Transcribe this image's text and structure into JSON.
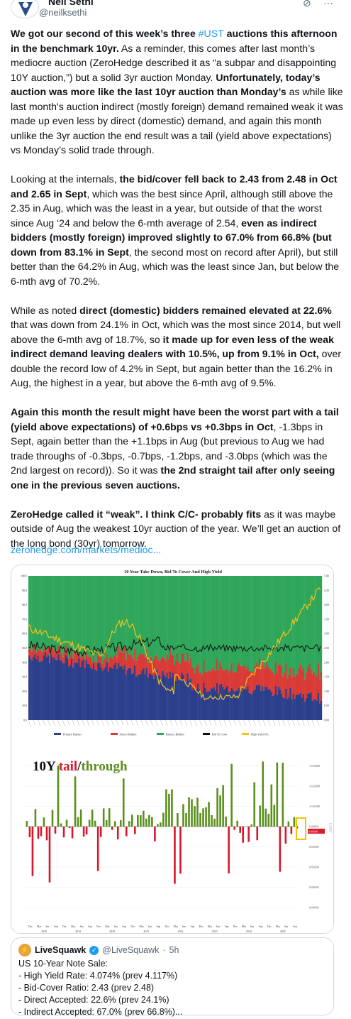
{
  "author": {
    "name": "Neil Sethi",
    "handle": "@neilksethi"
  },
  "header_icons": [
    "grok-icon",
    "more-icon"
  ],
  "tweet": {
    "p1": [
      {
        "t": "We got our second of this week’s three ",
        "b": true
      },
      {
        "t": "#UST",
        "link": true
      },
      {
        "t": " auctions this afternoon in the benchmark 10yr.",
        "b": true
      },
      {
        "t": " As a reminder, this comes after last month’s mediocre auction (ZeroHedge described it as “a subpar and disappointing 10Y auction,”) but a solid 3yr auction Monday. "
      },
      {
        "t": "Unfortunately, today’s auction was more like the last 10yr auction than Monday’s",
        "b": true
      },
      {
        "t": " as while like last month's auction indirect (mostly foreign) demand remained weak it was made up even less by direct (domestic) demand, and again this month unlike the 3yr auction the end result was a tail (yield above expectations) vs Monday’s solid trade through."
      }
    ],
    "p2": [
      {
        "t": "Looking at the internals, "
      },
      {
        "t": "the bid/cover fell back to 2.43 from 2.48 in Oct and 2.65 in Sept",
        "b": true
      },
      {
        "t": ", which was the best since April, although still above the 2.35 in Aug, which was the least in a year, but outside of that the worst since Aug ‘24 and below the 6-mth average of 2.54, "
      },
      {
        "t": "even as indirect bidders (mostly foreign) improved slightly to 67.0% from 66.8% (but down from 83.1% in Sept",
        "b": true
      },
      {
        "t": ", the second most on record after April), but still better than the 64.2% in Aug, which was the least since Jan, but below the 6-mth avg of 70.2%."
      }
    ],
    "p3": [
      {
        "t": "While as noted "
      },
      {
        "t": "direct (domestic) bidders remained elevated at 22.6%",
        "b": true
      },
      {
        "t": " that was down from 24.1% in Oct, which was the most since 2014, but well above the 6-mth avg of 18.7%, so "
      },
      {
        "t": "it made up for even less of the weak indirect demand leaving dealers with 10.5%, up from 9.1% in Oct,",
        "b": true
      },
      {
        "t": " over double the record low of 4.2% in Sept, but again better than the 16.2% in Aug, the highest in a year, but above the 6-mth avg of 9.5%."
      }
    ],
    "p4": [
      {
        "t": "Again this month the result might have been the worst part with a tail (yield above expectations) of +0.6bps vs +0.3bps in Oct",
        "b": true
      },
      {
        "t": ", -1.3bps in Sept, again better than the +1.1bps in Aug (but previous to Aug we had trade throughs of -0.3bps, -0.7bps, -1.2bps, and -3.0bps (which was the 2nd largest on record)). So it was "
      },
      {
        "t": "the 2nd straight tail after only seeing one in the previous seven auctions.",
        "b": true
      }
    ],
    "p5": [
      {
        "t": "ZeroHedge called it “weak”. I think C/C- probably fits",
        "b": true
      },
      {
        "t": " as it was maybe outside of Aug the weakest 10yr auction of the year. We’ll get an auction of the long bond (30yr) tomorrow."
      }
    ],
    "url": "zerohedge.com/markets/medioc..."
  },
  "chart1": {
    "title": "10 Year Take Down, Bid To Cover And High Yield",
    "y_left_ticks": [
      "100.0",
      "90.0",
      "80.0",
      "70.0",
      "60.0",
      "50.0",
      "40.0",
      "30.0",
      "20.0",
      "10.0",
      "0.0"
    ],
    "y_right_ticks": [
      "5.00",
      "4.50",
      "4.00",
      "3.50",
      "3.00",
      "2.50",
      "2.00",
      "1.50",
      "1.00",
      "0.50",
      "0.00"
    ],
    "legend": [
      "Primary Dealers",
      "Direct Bidders",
      "Indirect Bidders",
      "Bid To Cover",
      "High Yield (%)"
    ],
    "colors": {
      "dealers": "#2b3f8c",
      "direct": "#d93a36",
      "indirect": "#2fa65a",
      "btc": "#111111",
      "yield": "#f2c21b"
    }
  },
  "chart2": {
    "title_prefix": "10Y ",
    "title_tail": "tail",
    "title_sep": "/",
    "title_through": "through",
    "side_label": "LOW",
    "y_ticks": [
      "-0.03000",
      "-0.02000",
      "-0.01000",
      "0.00000",
      "0.01000",
      "0.02000",
      "0.03000",
      "0.04000"
    ],
    "highlight_value": "0.00000",
    "highlight_value2": "0.00600",
    "x_labels": [
      "Dec",
      "Mar",
      "Jun",
      "Sep",
      "Dec",
      "Mar",
      "Jun",
      "Sep",
      "Dec",
      "Mar",
      "Jun",
      "Sep",
      "Dec",
      "Mar",
      "Jun",
      "Sep",
      "Dec",
      "Mar",
      "Jun",
      "Sep",
      "Dec",
      "Mar",
      "Jun",
      "Sep",
      "Dec",
      "Mar",
      "Jun",
      "Sep",
      "Dec",
      "Mar",
      "Jun",
      "Sep"
    ],
    "years": [
      "2018",
      "2019",
      "2020",
      "2021",
      "2022",
      "2023",
      "2024",
      "2025"
    ],
    "colors": {
      "tail": "#d7192b",
      "through": "#5a8f1e",
      "highlight": "#f5c400"
    }
  },
  "quote": {
    "name": "LiveSquawk",
    "handle": "@LiveSquawk",
    "time": "5h",
    "lines": [
      "US 10-Year Note Sale:",
      "- High Yield Rate: 4.074% (prev 4.117%)",
      "- Bid-Cover Ratio: 2.43 (prev 2.48)",
      "- Direct Accepted: 22.6% (prev 24.1%)",
      "- Indirect Accepted: 67.0% (prev 66.8%)..."
    ]
  }
}
